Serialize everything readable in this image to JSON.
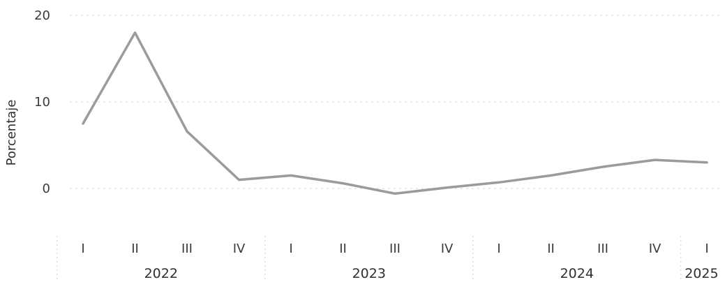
{
  "chart_data": {
    "type": "line",
    "ylabel": "Porcentaje",
    "ylim": [
      0,
      20
    ],
    "yticks": [
      0,
      10,
      20
    ],
    "grid": true,
    "categories": [
      "I",
      "II",
      "III",
      "IV",
      "I",
      "II",
      "III",
      "IV",
      "I",
      "II",
      "III",
      "IV",
      "I"
    ],
    "years": [
      {
        "label": "2022",
        "quarters": 4
      },
      {
        "label": "2023",
        "quarters": 4
      },
      {
        "label": "2024",
        "quarters": 4
      },
      {
        "label": "2025",
        "quarters": 1
      }
    ],
    "series": [
      {
        "values": [
          7.5,
          18.0,
          6.6,
          1.0,
          1.5,
          0.6,
          -0.6,
          0.1,
          0.7,
          1.5,
          2.5,
          3.3,
          3.0
        ],
        "color": "#9b9b9b"
      }
    ]
  }
}
